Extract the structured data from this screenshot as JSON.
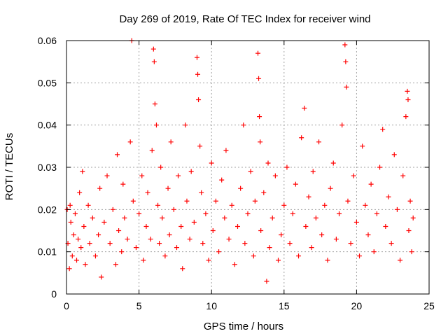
{
  "chart_data": {
    "type": "scatter",
    "title": "Day 269 of 2019, Rate Of TEC Index for receiver wind",
    "xlabel": "GPS time / hours",
    "ylabel": "ROTI / TECUs",
    "xlim": [
      0,
      25
    ],
    "ylim": [
      0,
      0.06
    ],
    "x_ticks": [
      0,
      5,
      10,
      15,
      20,
      25
    ],
    "x_tick_labels": [
      "0",
      "5",
      "10",
      "15",
      "20",
      "25"
    ],
    "y_ticks": [
      0,
      0.01,
      0.02,
      0.03,
      0.04,
      0.05,
      0.06
    ],
    "y_tick_labels": [
      "0",
      "0.01",
      "0.02",
      "0.03",
      "0.04",
      "0.05",
      "0.06"
    ],
    "grid": true,
    "marker": "+",
    "series": [
      {
        "name": "ROTI",
        "color": "#ff0000",
        "points": [
          [
            0.05,
            0.02
          ],
          [
            0.1,
            0.012
          ],
          [
            0.2,
            0.006
          ],
          [
            0.25,
            0.021
          ],
          [
            0.3,
            0.017
          ],
          [
            0.4,
            0.009
          ],
          [
            0.5,
            0.014
          ],
          [
            0.6,
            0.019
          ],
          [
            0.7,
            0.008
          ],
          [
            0.8,
            0.013
          ],
          [
            0.9,
            0.024
          ],
          [
            1.0,
            0.011
          ],
          [
            1.1,
            0.029
          ],
          [
            1.2,
            0.016
          ],
          [
            1.3,
            0.007
          ],
          [
            1.5,
            0.021
          ],
          [
            1.6,
            0.012
          ],
          [
            1.8,
            0.018
          ],
          [
            2.0,
            0.009
          ],
          [
            2.2,
            0.014
          ],
          [
            2.3,
            0.025
          ],
          [
            2.4,
            0.004
          ],
          [
            2.6,
            0.017
          ],
          [
            2.8,
            0.028
          ],
          [
            3.0,
            0.012
          ],
          [
            3.2,
            0.02
          ],
          [
            3.4,
            0.007
          ],
          [
            3.5,
            0.033
          ],
          [
            3.6,
            0.015
          ],
          [
            3.8,
            0.01
          ],
          [
            3.9,
            0.026
          ],
          [
            4.0,
            0.018
          ],
          [
            4.2,
            0.013
          ],
          [
            4.4,
            0.036
          ],
          [
            4.5,
            0.06
          ],
          [
            4.6,
            0.022
          ],
          [
            4.8,
            0.011
          ],
          [
            5.0,
            0.019
          ],
          [
            5.2,
            0.028
          ],
          [
            5.3,
            0.008
          ],
          [
            5.5,
            0.016
          ],
          [
            5.6,
            0.024
          ],
          [
            5.8,
            0.013
          ],
          [
            5.9,
            0.034
          ],
          [
            6.0,
            0.058
          ],
          [
            6.05,
            0.055
          ],
          [
            6.1,
            0.045
          ],
          [
            6.2,
            0.04
          ],
          [
            6.3,
            0.021
          ],
          [
            6.4,
            0.012
          ],
          [
            6.5,
            0.03
          ],
          [
            6.6,
            0.018
          ],
          [
            6.8,
            0.009
          ],
          [
            7.0,
            0.025
          ],
          [
            7.1,
            0.014
          ],
          [
            7.2,
            0.036
          ],
          [
            7.4,
            0.02
          ],
          [
            7.6,
            0.011
          ],
          [
            7.7,
            0.028
          ],
          [
            7.9,
            0.016
          ],
          [
            8.0,
            0.006
          ],
          [
            8.2,
            0.04
          ],
          [
            8.3,
            0.022
          ],
          [
            8.5,
            0.013
          ],
          [
            8.6,
            0.029
          ],
          [
            8.8,
            0.017
          ],
          [
            9.0,
            0.056
          ],
          [
            9.05,
            0.052
          ],
          [
            9.1,
            0.046
          ],
          [
            9.2,
            0.035
          ],
          [
            9.3,
            0.024
          ],
          [
            9.4,
            0.012
          ],
          [
            9.6,
            0.019
          ],
          [
            9.8,
            0.008
          ],
          [
            10.0,
            0.031
          ],
          [
            10.1,
            0.015
          ],
          [
            10.3,
            0.022
          ],
          [
            10.5,
            0.01
          ],
          [
            10.7,
            0.027
          ],
          [
            10.9,
            0.018
          ],
          [
            11.0,
            0.034
          ],
          [
            11.2,
            0.013
          ],
          [
            11.4,
            0.021
          ],
          [
            11.6,
            0.007
          ],
          [
            11.8,
            0.016
          ],
          [
            12.0,
            0.025
          ],
          [
            12.2,
            0.04
          ],
          [
            12.3,
            0.012
          ],
          [
            12.5,
            0.019
          ],
          [
            12.7,
            0.029
          ],
          [
            12.9,
            0.009
          ],
          [
            13.0,
            0.022
          ],
          [
            13.2,
            0.057
          ],
          [
            13.25,
            0.051
          ],
          [
            13.3,
            0.042
          ],
          [
            13.35,
            0.036
          ],
          [
            13.4,
            0.015
          ],
          [
            13.6,
            0.024
          ],
          [
            13.8,
            0.003
          ],
          [
            13.9,
            0.031
          ],
          [
            14.0,
            0.011
          ],
          [
            14.2,
            0.018
          ],
          [
            14.4,
            0.028
          ],
          [
            14.6,
            0.008
          ],
          [
            14.8,
            0.014
          ],
          [
            15.0,
            0.021
          ],
          [
            15.2,
            0.03
          ],
          [
            15.4,
            0.012
          ],
          [
            15.6,
            0.019
          ],
          [
            15.8,
            0.026
          ],
          [
            16.0,
            0.009
          ],
          [
            16.2,
            0.037
          ],
          [
            16.4,
            0.044
          ],
          [
            16.5,
            0.016
          ],
          [
            16.7,
            0.023
          ],
          [
            16.9,
            0.011
          ],
          [
            17.0,
            0.029
          ],
          [
            17.2,
            0.018
          ],
          [
            17.4,
            0.036
          ],
          [
            17.6,
            0.014
          ],
          [
            17.8,
            0.021
          ],
          [
            18.0,
            0.008
          ],
          [
            18.2,
            0.025
          ],
          [
            18.4,
            0.031
          ],
          [
            18.6,
            0.013
          ],
          [
            18.8,
            0.019
          ],
          [
            19.0,
            0.04
          ],
          [
            19.2,
            0.059
          ],
          [
            19.25,
            0.055
          ],
          [
            19.3,
            0.049
          ],
          [
            19.4,
            0.022
          ],
          [
            19.6,
            0.012
          ],
          [
            19.8,
            0.028
          ],
          [
            20.0,
            0.017
          ],
          [
            20.2,
            0.009
          ],
          [
            20.4,
            0.035
          ],
          [
            20.6,
            0.021
          ],
          [
            20.8,
            0.014
          ],
          [
            21.0,
            0.026
          ],
          [
            21.2,
            0.01
          ],
          [
            21.4,
            0.019
          ],
          [
            21.6,
            0.03
          ],
          [
            21.8,
            0.039
          ],
          [
            22.0,
            0.016
          ],
          [
            22.2,
            0.023
          ],
          [
            22.4,
            0.012
          ],
          [
            22.6,
            0.033
          ],
          [
            22.8,
            0.02
          ],
          [
            23.0,
            0.008
          ],
          [
            23.2,
            0.028
          ],
          [
            23.4,
            0.042
          ],
          [
            23.5,
            0.048
          ],
          [
            23.55,
            0.046
          ],
          [
            23.6,
            0.015
          ],
          [
            23.7,
            0.022
          ],
          [
            23.8,
            0.01
          ],
          [
            23.9,
            0.018
          ]
        ]
      }
    ]
  }
}
